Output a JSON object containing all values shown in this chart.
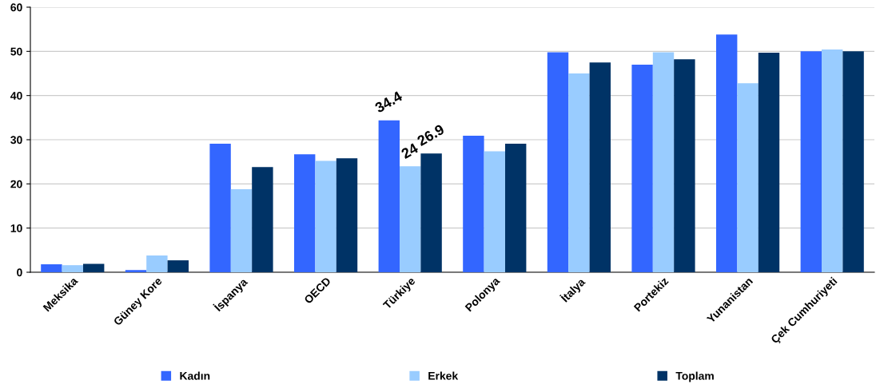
{
  "chart_data": {
    "type": "bar",
    "categories": [
      "Meksika",
      "Güney Kore",
      "İspanya",
      "OECD",
      "Türkiye",
      "Polonya",
      "İtalya",
      "Portekiz",
      "Yunanistan",
      "Çek Cumhuriyeti"
    ],
    "series": [
      {
        "name": "Kadın",
        "color": "#3366ff",
        "values": [
          1.8,
          0.5,
          29.1,
          26.7,
          34.4,
          30.9,
          49.8,
          47.0,
          53.8,
          50.0
        ],
        "value_labels": [
          null,
          null,
          null,
          null,
          "34.4",
          null,
          null,
          null,
          null,
          null
        ]
      },
      {
        "name": "Erkek",
        "color": "#99ccff",
        "values": [
          1.6,
          3.8,
          18.8,
          25.2,
          24,
          27.4,
          45.0,
          49.8,
          42.8,
          50.4
        ],
        "value_labels": [
          null,
          null,
          null,
          null,
          "24",
          null,
          null,
          null,
          null,
          null
        ]
      },
      {
        "name": "Toplam",
        "color": "#003366",
        "values": [
          1.9,
          2.7,
          23.8,
          25.8,
          26.9,
          29.1,
          47.5,
          48.2,
          49.7,
          50.0
        ],
        "value_labels": [
          null,
          null,
          null,
          null,
          "26.9",
          null,
          null,
          null,
          null,
          null
        ]
      }
    ],
    "ylim": [
      0,
      60
    ],
    "yticks": [
      0,
      10,
      20,
      30,
      40,
      50,
      60
    ],
    "grid": "y",
    "legend": "bottom"
  }
}
